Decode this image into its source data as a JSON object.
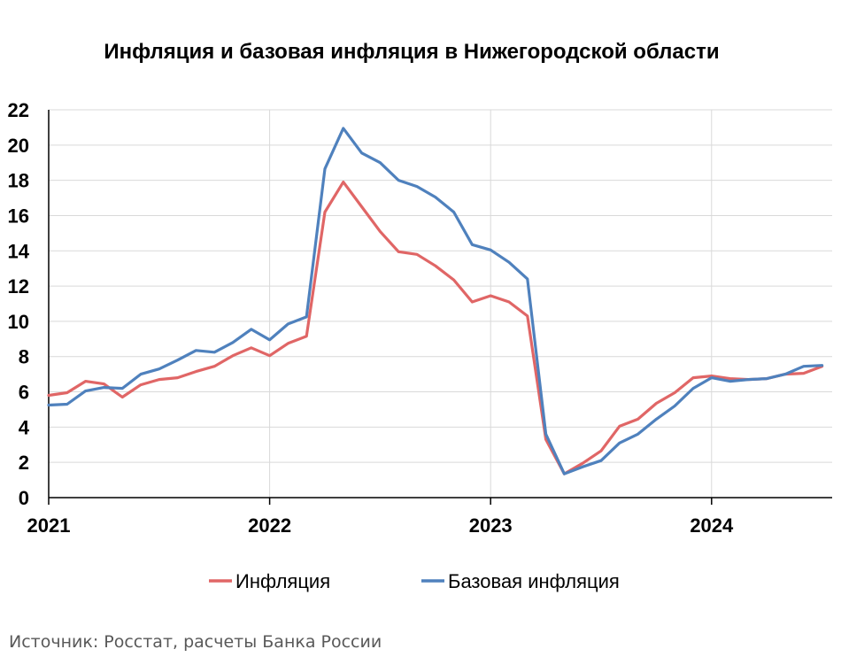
{
  "chart_data": {
    "type": "line",
    "title": "Инфляция и базовая инфляция в Нижегородской области",
    "x_tick_labels": [
      "2021",
      "2022",
      "2023",
      "2024"
    ],
    "x_start": "2021-01",
    "ylim": [
      0,
      22
    ],
    "y_ticks": [
      0,
      2,
      4,
      6,
      8,
      10,
      12,
      14,
      16,
      18,
      20,
      22
    ],
    "grid": true,
    "legend_position": "bottom",
    "series": [
      {
        "name": "Инфляция",
        "color": "#E06666",
        "values": [
          5.8,
          5.95,
          6.6,
          6.45,
          5.7,
          6.4,
          6.7,
          6.8,
          7.15,
          7.45,
          8.05,
          8.5,
          8.05,
          8.75,
          9.15,
          16.2,
          17.9,
          16.5,
          15.1,
          13.95,
          13.8,
          13.15,
          12.35,
          11.1,
          11.45,
          11.1,
          10.3,
          3.3,
          1.35,
          1.95,
          2.65,
          4.05,
          4.45,
          5.35,
          5.95,
          6.8,
          6.9,
          6.75,
          6.7,
          6.75,
          7.0,
          7.05,
          7.45
        ]
      },
      {
        "name": "Базовая инфляция",
        "color": "#4F81BD",
        "values": [
          5.25,
          5.3,
          6.05,
          6.25,
          6.2,
          7.0,
          7.3,
          7.8,
          8.35,
          8.25,
          8.8,
          9.55,
          8.95,
          9.85,
          10.25,
          18.65,
          20.95,
          19.55,
          19.0,
          18.0,
          17.65,
          17.05,
          16.2,
          14.35,
          14.05,
          13.35,
          12.4,
          3.6,
          1.35,
          1.75,
          2.1,
          3.1,
          3.6,
          4.45,
          5.2,
          6.2,
          6.8,
          6.6,
          6.7,
          6.75,
          7.0,
          7.45,
          7.5
        ]
      }
    ]
  },
  "source": "Источник: Росстат, расчеты Банка России"
}
